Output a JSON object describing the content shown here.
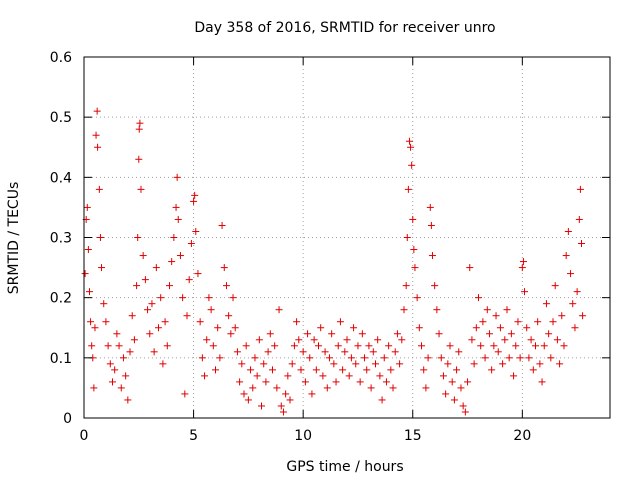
{
  "chart_data": {
    "type": "scatter",
    "title": "Day 358 of 2016, SRMTID for receiver unro",
    "xlabel": "GPS time / hours",
    "ylabel": "SRMTID / TECUs",
    "xlim": [
      0,
      24
    ],
    "ylim": [
      0,
      0.6
    ],
    "xticks": [
      "0",
      "5",
      "10",
      "15",
      "20"
    ],
    "yticks": [
      "0",
      "0.1",
      "0.2",
      "0.3",
      "0.4",
      "0.5",
      "0.6"
    ],
    "grid": true,
    "marker": "plus",
    "color": "#e00000",
    "series": [
      {
        "name": "unro",
        "points": [
          [
            0.05,
            0.24
          ],
          [
            0.1,
            0.33
          ],
          [
            0.15,
            0.35
          ],
          [
            0.2,
            0.28
          ],
          [
            0.25,
            0.21
          ],
          [
            0.3,
            0.16
          ],
          [
            0.35,
            0.12
          ],
          [
            0.4,
            0.1
          ],
          [
            0.45,
            0.05
          ],
          [
            0.5,
            0.15
          ],
          [
            0.55,
            0.47
          ],
          [
            0.6,
            0.51
          ],
          [
            0.62,
            0.45
          ],
          [
            0.7,
            0.38
          ],
          [
            0.75,
            0.3
          ],
          [
            0.8,
            0.25
          ],
          [
            0.9,
            0.19
          ],
          [
            1.0,
            0.16
          ],
          [
            1.1,
            0.12
          ],
          [
            1.2,
            0.09
          ],
          [
            1.3,
            0.06
          ],
          [
            1.4,
            0.08
          ],
          [
            1.5,
            0.14
          ],
          [
            1.6,
            0.12
          ],
          [
            1.7,
            0.05
          ],
          [
            1.8,
            0.1
          ],
          [
            1.9,
            0.07
          ],
          [
            2.0,
            0.03
          ],
          [
            2.1,
            0.11
          ],
          [
            2.2,
            0.17
          ],
          [
            2.3,
            0.13
          ],
          [
            2.4,
            0.22
          ],
          [
            2.45,
            0.3
          ],
          [
            2.5,
            0.43
          ],
          [
            2.52,
            0.48
          ],
          [
            2.55,
            0.49
          ],
          [
            2.6,
            0.38
          ],
          [
            2.7,
            0.27
          ],
          [
            2.8,
            0.23
          ],
          [
            2.9,
            0.18
          ],
          [
            3.0,
            0.14
          ],
          [
            3.1,
            0.19
          ],
          [
            3.2,
            0.11
          ],
          [
            3.3,
            0.25
          ],
          [
            3.4,
            0.15
          ],
          [
            3.5,
            0.2
          ],
          [
            3.6,
            0.09
          ],
          [
            3.7,
            0.16
          ],
          [
            3.8,
            0.12
          ],
          [
            3.9,
            0.22
          ],
          [
            4.0,
            0.26
          ],
          [
            4.1,
            0.3
          ],
          [
            4.2,
            0.35
          ],
          [
            4.25,
            0.4
          ],
          [
            4.3,
            0.33
          ],
          [
            4.4,
            0.27
          ],
          [
            4.5,
            0.2
          ],
          [
            4.6,
            0.04
          ],
          [
            4.7,
            0.17
          ],
          [
            4.8,
            0.23
          ],
          [
            4.9,
            0.29
          ],
          [
            5.0,
            0.36
          ],
          [
            5.05,
            0.37
          ],
          [
            5.1,
            0.31
          ],
          [
            5.2,
            0.24
          ],
          [
            5.3,
            0.16
          ],
          [
            5.4,
            0.1
          ],
          [
            5.5,
            0.07
          ],
          [
            5.6,
            0.13
          ],
          [
            5.7,
            0.2
          ],
          [
            5.8,
            0.18
          ],
          [
            5.9,
            0.12
          ],
          [
            6.0,
            0.08
          ],
          [
            6.1,
            0.15
          ],
          [
            6.2,
            0.1
          ],
          [
            6.3,
            0.32
          ],
          [
            6.4,
            0.25
          ],
          [
            6.5,
            0.22
          ],
          [
            6.6,
            0.17
          ],
          [
            6.7,
            0.14
          ],
          [
            6.8,
            0.2
          ],
          [
            6.9,
            0.15
          ],
          [
            7.0,
            0.11
          ],
          [
            7.1,
            0.06
          ],
          [
            7.2,
            0.09
          ],
          [
            7.3,
            0.04
          ],
          [
            7.4,
            0.12
          ],
          [
            7.5,
            0.03
          ],
          [
            7.6,
            0.08
          ],
          [
            7.7,
            0.05
          ],
          [
            7.8,
            0.1
          ],
          [
            7.9,
            0.07
          ],
          [
            8.0,
            0.13
          ],
          [
            8.1,
            0.02
          ],
          [
            8.2,
            0.09
          ],
          [
            8.3,
            0.06
          ],
          [
            8.4,
            0.11
          ],
          [
            8.5,
            0.14
          ],
          [
            8.6,
            0.08
          ],
          [
            8.7,
            0.12
          ],
          [
            8.8,
            0.05
          ],
          [
            8.9,
            0.18
          ],
          [
            9.0,
            0.02
          ],
          [
            9.1,
            0.01
          ],
          [
            9.2,
            0.04
          ],
          [
            9.3,
            0.07
          ],
          [
            9.4,
            0.03
          ],
          [
            9.5,
            0.09
          ],
          [
            9.6,
            0.12
          ],
          [
            9.7,
            0.16
          ],
          [
            9.8,
            0.13
          ],
          [
            9.9,
            0.08
          ],
          [
            10.0,
            0.11
          ],
          [
            10.1,
            0.06
          ],
          [
            10.2,
            0.14
          ],
          [
            10.3,
            0.1
          ],
          [
            10.4,
            0.04
          ],
          [
            10.5,
            0.13
          ],
          [
            10.6,
            0.08
          ],
          [
            10.7,
            0.12
          ],
          [
            10.8,
            0.15
          ],
          [
            10.9,
            0.07
          ],
          [
            11.0,
            0.11
          ],
          [
            11.1,
            0.05
          ],
          [
            11.2,
            0.1
          ],
          [
            11.3,
            0.14
          ],
          [
            11.4,
            0.09
          ],
          [
            11.5,
            0.06
          ],
          [
            11.6,
            0.12
          ],
          [
            11.7,
            0.16
          ],
          [
            11.8,
            0.08
          ],
          [
            11.9,
            0.11
          ],
          [
            12.0,
            0.13
          ],
          [
            12.1,
            0.07
          ],
          [
            12.2,
            0.1
          ],
          [
            12.3,
            0.15
          ],
          [
            12.4,
            0.09
          ],
          [
            12.5,
            0.12
          ],
          [
            12.6,
            0.06
          ],
          [
            12.7,
            0.14
          ],
          [
            12.8,
            0.1
          ],
          [
            12.9,
            0.08
          ],
          [
            13.0,
            0.12
          ],
          [
            13.1,
            0.05
          ],
          [
            13.2,
            0.11
          ],
          [
            13.3,
            0.09
          ],
          [
            13.4,
            0.13
          ],
          [
            13.5,
            0.07
          ],
          [
            13.6,
            0.03
          ],
          [
            13.7,
            0.1
          ],
          [
            13.8,
            0.06
          ],
          [
            13.9,
            0.12
          ],
          [
            14.0,
            0.08
          ],
          [
            14.1,
            0.05
          ],
          [
            14.2,
            0.11
          ],
          [
            14.3,
            0.14
          ],
          [
            14.4,
            0.09
          ],
          [
            14.5,
            0.13
          ],
          [
            14.6,
            0.18
          ],
          [
            14.7,
            0.22
          ],
          [
            14.75,
            0.3
          ],
          [
            14.8,
            0.38
          ],
          [
            14.85,
            0.46
          ],
          [
            14.9,
            0.45
          ],
          [
            14.95,
            0.42
          ],
          [
            15.0,
            0.33
          ],
          [
            15.05,
            0.28
          ],
          [
            15.1,
            0.25
          ],
          [
            15.2,
            0.2
          ],
          [
            15.3,
            0.15
          ],
          [
            15.4,
            0.12
          ],
          [
            15.5,
            0.08
          ],
          [
            15.6,
            0.05
          ],
          [
            15.7,
            0.1
          ],
          [
            15.8,
            0.35
          ],
          [
            15.85,
            0.32
          ],
          [
            15.9,
            0.27
          ],
          [
            16.0,
            0.22
          ],
          [
            16.1,
            0.18
          ],
          [
            16.2,
            0.14
          ],
          [
            16.3,
            0.1
          ],
          [
            16.4,
            0.07
          ],
          [
            16.5,
            0.04
          ],
          [
            16.6,
            0.09
          ],
          [
            16.7,
            0.12
          ],
          [
            16.8,
            0.06
          ],
          [
            16.9,
            0.03
          ],
          [
            17.0,
            0.08
          ],
          [
            17.1,
            0.11
          ],
          [
            17.2,
            0.05
          ],
          [
            17.3,
            0.02
          ],
          [
            17.4,
            0.01
          ],
          [
            17.5,
            0.06
          ],
          [
            17.6,
            0.25
          ],
          [
            17.7,
            0.13
          ],
          [
            17.8,
            0.09
          ],
          [
            17.9,
            0.15
          ],
          [
            18.0,
            0.2
          ],
          [
            18.1,
            0.12
          ],
          [
            18.2,
            0.16
          ],
          [
            18.3,
            0.1
          ],
          [
            18.4,
            0.18
          ],
          [
            18.5,
            0.14
          ],
          [
            18.6,
            0.08
          ],
          [
            18.7,
            0.12
          ],
          [
            18.8,
            0.17
          ],
          [
            18.9,
            0.11
          ],
          [
            19.0,
            0.15
          ],
          [
            19.1,
            0.09
          ],
          [
            19.2,
            0.13
          ],
          [
            19.3,
            0.18
          ],
          [
            19.4,
            0.1
          ],
          [
            19.5,
            0.14
          ],
          [
            19.6,
            0.07
          ],
          [
            19.7,
            0.12
          ],
          [
            19.8,
            0.16
          ],
          [
            19.9,
            0.1
          ],
          [
            20.0,
            0.25
          ],
          [
            20.05,
            0.26
          ],
          [
            20.1,
            0.21
          ],
          [
            20.2,
            0.15
          ],
          [
            20.3,
            0.1
          ],
          [
            20.4,
            0.13
          ],
          [
            20.5,
            0.08
          ],
          [
            20.6,
            0.12
          ],
          [
            20.7,
            0.16
          ],
          [
            20.8,
            0.09
          ],
          [
            20.9,
            0.06
          ],
          [
            21.0,
            0.12
          ],
          [
            21.1,
            0.19
          ],
          [
            21.2,
            0.14
          ],
          [
            21.3,
            0.1
          ],
          [
            21.4,
            0.16
          ],
          [
            21.5,
            0.22
          ],
          [
            21.6,
            0.13
          ],
          [
            21.7,
            0.09
          ],
          [
            21.8,
            0.17
          ],
          [
            21.9,
            0.12
          ],
          [
            22.0,
            0.27
          ],
          [
            22.1,
            0.31
          ],
          [
            22.2,
            0.24
          ],
          [
            22.3,
            0.19
          ],
          [
            22.4,
            0.15
          ],
          [
            22.5,
            0.21
          ],
          [
            22.6,
            0.33
          ],
          [
            22.65,
            0.38
          ],
          [
            22.7,
            0.29
          ],
          [
            22.75,
            0.17
          ]
        ]
      }
    ]
  }
}
